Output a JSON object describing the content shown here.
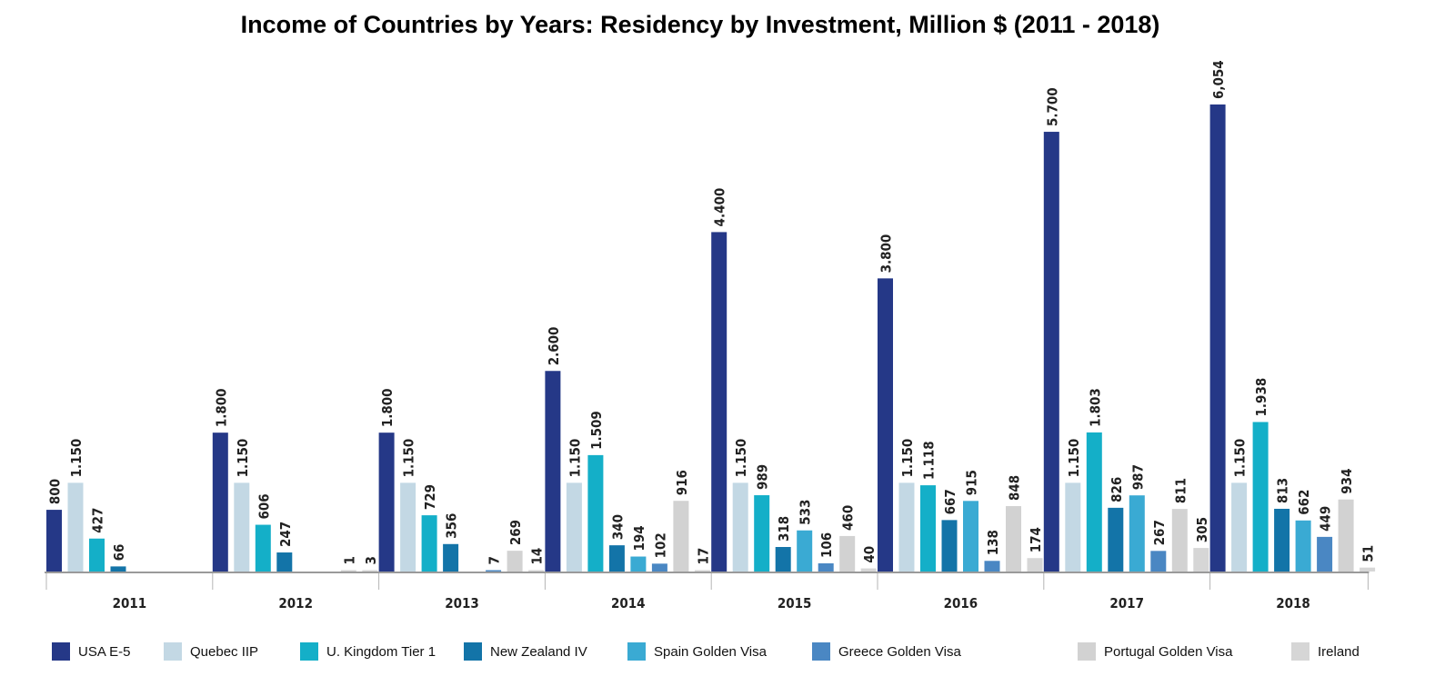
{
  "chart_data": {
    "type": "bar",
    "title": "Income of Countries by Years: Residency by Investment, Million $ (2011 - 2018)",
    "xlabel": "",
    "ylabel": "",
    "ylim": [
      0,
      6054
    ],
    "grid": false,
    "legend_placement": "bottom",
    "categories": [
      "2011",
      "2012",
      "2013",
      "2014",
      "2015",
      "2016",
      "2017",
      "2018"
    ],
    "series": [
      {
        "name": "USA E-5",
        "color": "#253887",
        "values": [
          800,
          1800,
          1800,
          2600,
          4400,
          3800,
          5700,
          6054
        ],
        "labels": [
          "800",
          "1.800",
          "1.800",
          "2.600",
          "4.400",
          "3.800",
          "5.700",
          "6,054"
        ]
      },
      {
        "name": "Quebec IIP",
        "color": "#c3d8e4",
        "values": [
          1150,
          1150,
          1150,
          1150,
          1150,
          1150,
          1150,
          1150
        ],
        "labels": [
          "1.150",
          "1.150",
          "1.150",
          "1.150",
          "1.150",
          "1.150",
          "1.150",
          "1.150"
        ]
      },
      {
        "name": "U. Kingdom Tier 1",
        "color": "#14afc8",
        "values": [
          427,
          606,
          729,
          1509,
          989,
          1118,
          1803,
          1938
        ],
        "labels": [
          "427",
          "606",
          "729",
          "1.509",
          "989",
          "1.118",
          "1.803",
          "1.938"
        ]
      },
      {
        "name": "New Zealand IV",
        "color": "#1374a8",
        "values": [
          66,
          247,
          356,
          340,
          318,
          667,
          826,
          813
        ],
        "labels": [
          "66",
          "247",
          "356",
          "340",
          "318",
          "667",
          "826",
          "813"
        ]
      },
      {
        "name": "Spain Golden Visa",
        "color": "#3aaad3",
        "values": [
          null,
          null,
          null,
          194,
          533,
          915,
          987,
          662
        ],
        "labels": [
          null,
          null,
          null,
          "194",
          "533",
          "915",
          "987",
          "662"
        ]
      },
      {
        "name": "Greece Golden Visa",
        "color": "#4a87c3",
        "values": [
          null,
          null,
          7,
          102,
          106,
          138,
          267,
          449
        ],
        "labels": [
          null,
          null,
          "7",
          "102",
          "106",
          "138",
          "267",
          "449"
        ]
      },
      {
        "name": "Portugal Golden Visa",
        "color": "#d2d2d2",
        "values": [
          null,
          1,
          269,
          916,
          460,
          848,
          811,
          934
        ],
        "labels": [
          null,
          "1",
          "269",
          "916",
          "460",
          "848",
          "811",
          "934"
        ]
      },
      {
        "name": "Ireland",
        "color": "#d6d6d6",
        "values": [
          null,
          3,
          14,
          17,
          40,
          174,
          305,
          51
        ],
        "labels": [
          null,
          "3",
          "14",
          "17",
          "40",
          "174",
          "305",
          "51"
        ]
      }
    ]
  }
}
